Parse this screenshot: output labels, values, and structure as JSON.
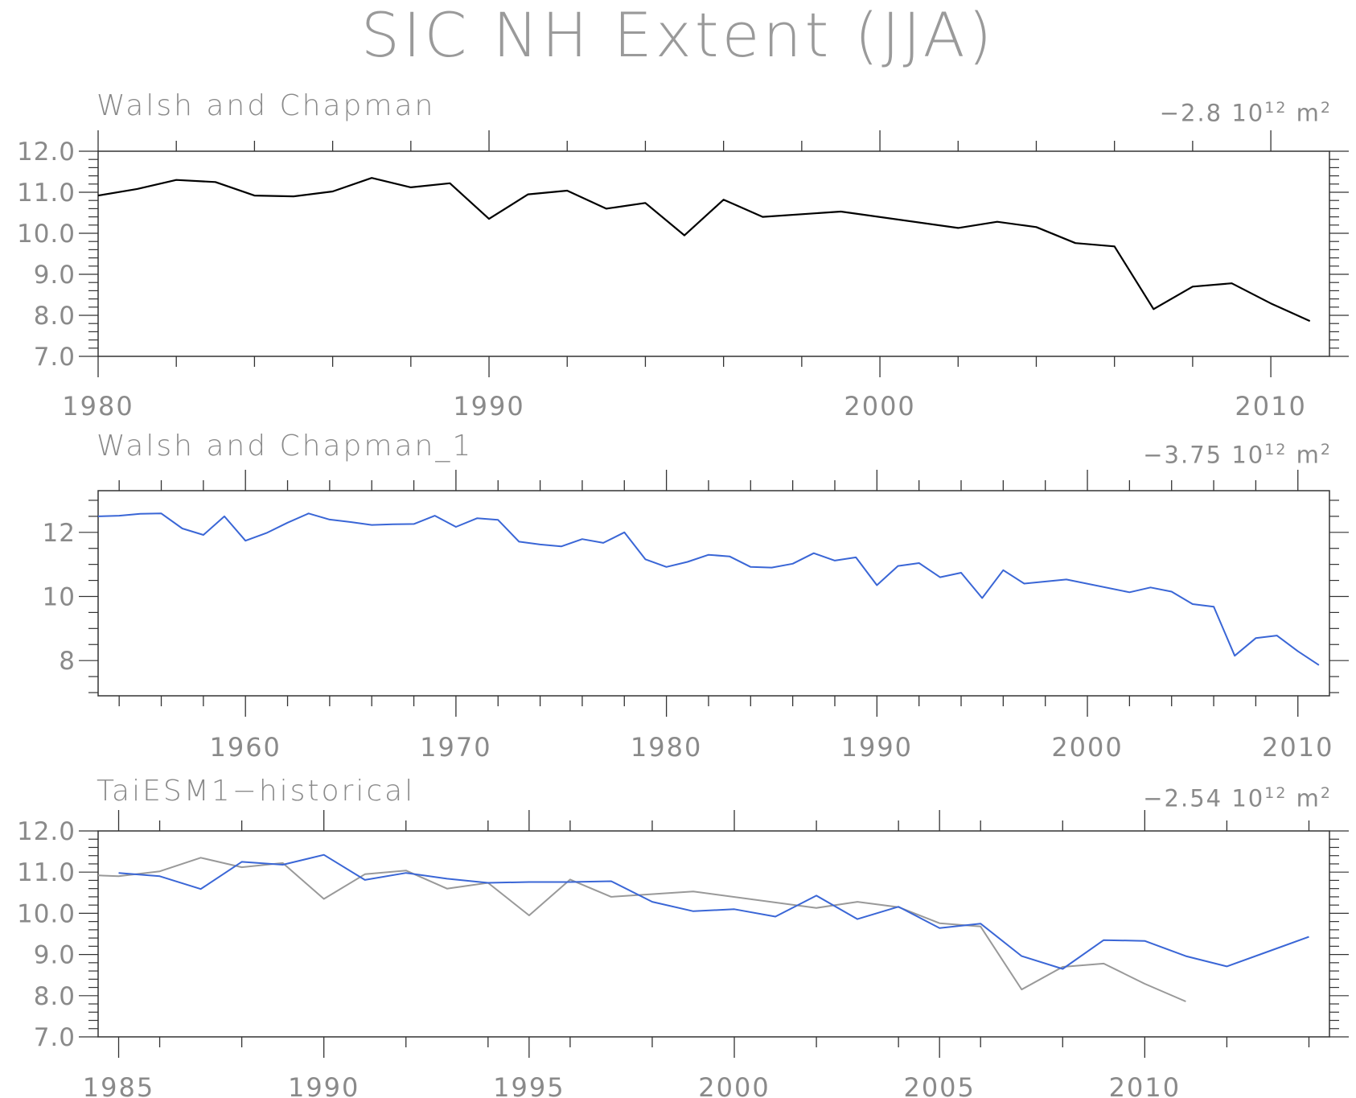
{
  "title": "SIC NH Extent (JJA)",
  "chart_data": [
    {
      "type": "line",
      "title": "Walsh and Chapman",
      "trend": {
        "value": "−2.8",
        "unit": "10",
        "exp": "12",
        "unit2": "m",
        "exp2": "2"
      },
      "xlim": [
        1980,
        2011.5
      ],
      "ylim": [
        7.0,
        12.0
      ],
      "xticks": [
        1980,
        1990,
        2000,
        2010
      ],
      "xtick_labels": [
        "1980",
        "1990",
        "2000",
        "2010"
      ],
      "yticks": [
        7,
        8,
        9,
        10,
        11,
        12
      ],
      "ytick_labels": [
        "7.0",
        "8.0",
        "9.0",
        "10.0",
        "11.0",
        "12.0"
      ],
      "series": [
        {
          "color": "#000000",
          "x": [
            1980,
            1981,
            1982,
            1983,
            1984,
            1985,
            1986,
            1987,
            1988,
            1989,
            1990,
            1991,
            1992,
            1993,
            1994,
            1995,
            1996,
            1997,
            1999,
            2002,
            2003,
            2004,
            2005,
            2006,
            2007,
            2008,
            2009,
            2010,
            2011
          ],
          "y": [
            10.92,
            11.08,
            11.3,
            11.25,
            10.92,
            10.9,
            11.02,
            11.35,
            11.12,
            11.22,
            10.35,
            10.95,
            11.04,
            10.6,
            10.74,
            9.95,
            10.82,
            10.4,
            10.53,
            10.13,
            10.28,
            10.15,
            9.76,
            9.68,
            8.15,
            8.7,
            8.78,
            8.29,
            7.86
          ]
        }
      ]
    },
    {
      "type": "line",
      "title": "Walsh and Chapman_1",
      "trend": {
        "value": "−3.75",
        "unit": "10",
        "exp": "12",
        "unit2": "m",
        "exp2": "2"
      },
      "xlim": [
        1953,
        2011.5
      ],
      "ylim": [
        6.9,
        13.3
      ],
      "xticks": [
        1960,
        1970,
        1980,
        1990,
        2000,
        2010
      ],
      "xtick_labels": [
        "1960",
        "1970",
        "1980",
        "1990",
        "2000",
        "2010"
      ],
      "yticks": [
        8,
        10,
        12
      ],
      "ytick_labels": [
        "8",
        "10",
        "12"
      ],
      "series": [
        {
          "color": "#3a66d6",
          "x": [
            1953,
            1954,
            1955,
            1956,
            1957,
            1958,
            1959,
            1960,
            1961,
            1962,
            1963,
            1964,
            1965,
            1966,
            1967,
            1968,
            1969,
            1970,
            1971,
            1972,
            1973,
            1974,
            1975,
            1976,
            1977,
            1978,
            1979,
            1980,
            1981,
            1982,
            1983,
            1984,
            1985,
            1986,
            1987,
            1988,
            1989,
            1990,
            1991,
            1992,
            1993,
            1994,
            1995,
            1996,
            1997,
            1999,
            2002,
            2003,
            2004,
            2005,
            2006,
            2007,
            2008,
            2009,
            2010,
            2011
          ],
          "y": [
            12.5,
            12.52,
            12.58,
            12.59,
            12.12,
            11.92,
            12.5,
            11.74,
            11.98,
            12.3,
            12.59,
            12.4,
            12.32,
            12.23,
            12.25,
            12.26,
            12.52,
            12.17,
            12.44,
            12.39,
            11.71,
            11.62,
            11.56,
            11.79,
            11.67,
            12.0,
            11.16,
            10.92,
            11.08,
            11.3,
            11.25,
            10.92,
            10.9,
            11.02,
            11.35,
            11.12,
            11.22,
            10.35,
            10.95,
            11.04,
            10.6,
            10.74,
            9.95,
            10.82,
            10.4,
            10.53,
            10.13,
            10.28,
            10.15,
            9.76,
            9.68,
            8.15,
            8.7,
            8.78,
            8.29,
            7.86
          ]
        }
      ]
    },
    {
      "type": "line",
      "title": "TaiESM1−historical",
      "trend": {
        "value": "−2.54",
        "unit": "10",
        "exp": "12",
        "unit2": "m",
        "exp2": "2"
      },
      "xlim": [
        1984.5,
        2014.5
      ],
      "ylim": [
        7.0,
        12.0
      ],
      "xticks": [
        1985,
        1990,
        1995,
        2000,
        2005,
        2010
      ],
      "xtick_labels": [
        "1985",
        "1990",
        "1995",
        "2000",
        "2005",
        "2010"
      ],
      "yticks": [
        7,
        8,
        9,
        10,
        11,
        12
      ],
      "ytick_labels": [
        "7.0",
        "8.0",
        "9.0",
        "10.0",
        "11.0",
        "12.0"
      ],
      "series": [
        {
          "color": "#999999",
          "x": [
            1984.5,
            1985,
            1986,
            1987,
            1988,
            1989,
            1990,
            1991,
            1992,
            1993,
            1994,
            1995,
            1996,
            1997,
            1999,
            2002,
            2003,
            2004,
            2005,
            2006,
            2007,
            2008,
            2009,
            2010,
            2011
          ],
          "y": [
            10.92,
            10.9,
            11.02,
            11.35,
            11.12,
            11.22,
            10.35,
            10.95,
            11.04,
            10.6,
            10.74,
            9.95,
            10.82,
            10.4,
            10.53,
            10.13,
            10.28,
            10.15,
            9.76,
            9.68,
            8.15,
            8.7,
            8.78,
            8.29,
            7.86
          ]
        },
        {
          "color": "#3a66d6",
          "x": [
            1985,
            1986,
            1987,
            1988,
            1989,
            1990,
            1991,
            1992,
            1993,
            1994,
            1995,
            1996,
            1997,
            1998,
            1999,
            2000,
            2001,
            2002,
            2003,
            2004,
            2005,
            2006,
            2007,
            2008,
            2009,
            2010,
            2011,
            2012,
            2013,
            2014
          ],
          "y": [
            10.98,
            10.9,
            10.59,
            11.25,
            11.18,
            11.42,
            10.81,
            10.98,
            10.84,
            10.74,
            10.76,
            10.76,
            10.78,
            10.28,
            10.05,
            10.1,
            9.92,
            10.43,
            9.86,
            10.16,
            9.64,
            9.75,
            8.96,
            8.65,
            9.35,
            9.33,
            8.96,
            8.71,
            9.07,
            9.43
          ]
        }
      ]
    }
  ]
}
